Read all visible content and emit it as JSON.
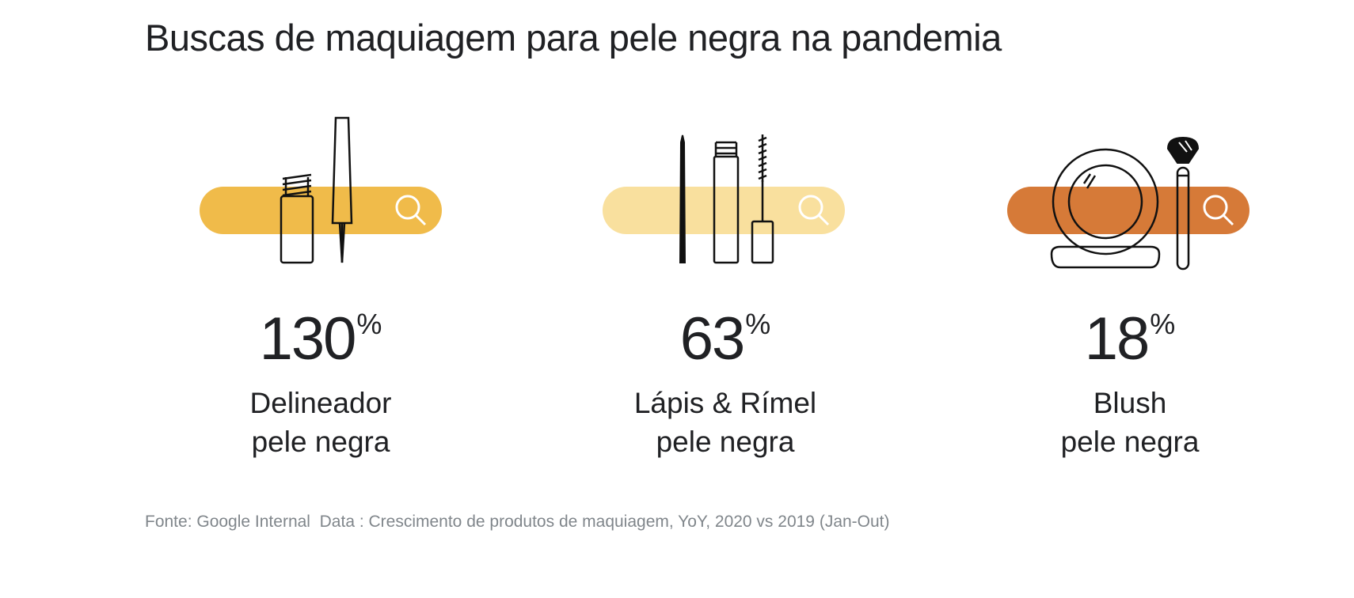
{
  "title": "Buscas de maquiagem para pele negra na pandemia",
  "items": [
    {
      "value": "130",
      "unit": "%",
      "line1": "Delineador",
      "line2": "pele negra",
      "icon": "eyeliner-bottle-icon",
      "bar_color": "#F0BB4A"
    },
    {
      "value": "63",
      "unit": "%",
      "line1": "Lápis & Rímel",
      "line2": "pele negra",
      "icon": "pencil-mascara-icon",
      "bar_color": "#F9E09E"
    },
    {
      "value": "18",
      "unit": "%",
      "line1": "Blush",
      "line2": "pele negra",
      "icon": "blush-compact-brush-icon",
      "bar_color": "#D67A38"
    }
  ],
  "source": "Fonte: Google Internal  Data : Crescimento de produtos de maquiagem, YoY, 2020 vs 2019 (Jan-Out)"
}
